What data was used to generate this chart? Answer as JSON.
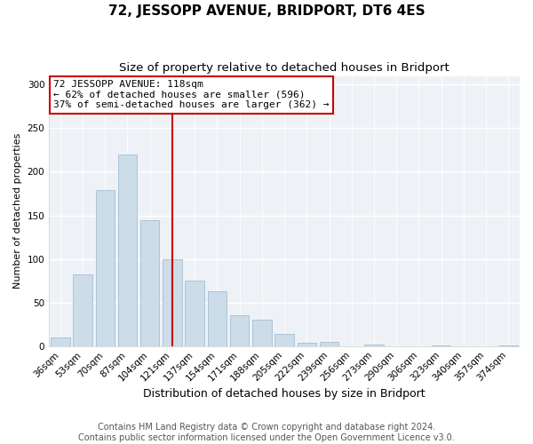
{
  "title": "72, JESSOPP AVENUE, BRIDPORT, DT6 4ES",
  "subtitle": "Size of property relative to detached houses in Bridport",
  "xlabel": "Distribution of detached houses by size in Bridport",
  "ylabel": "Number of detached properties",
  "bar_labels": [
    "36sqm",
    "53sqm",
    "70sqm",
    "87sqm",
    "104sqm",
    "121sqm",
    "137sqm",
    "154sqm",
    "171sqm",
    "188sqm",
    "205sqm",
    "222sqm",
    "239sqm",
    "256sqm",
    "273sqm",
    "290sqm",
    "306sqm",
    "323sqm",
    "340sqm",
    "357sqm",
    "374sqm"
  ],
  "bar_values": [
    10,
    82,
    179,
    220,
    144,
    100,
    75,
    63,
    35,
    30,
    14,
    4,
    5,
    0,
    2,
    0,
    0,
    1,
    0,
    0,
    1
  ],
  "bar_color": "#ccdce8",
  "bar_edge_color": "#aac4d8",
  "vline_x": 5,
  "vline_color": "#cc0000",
  "annotation_lines": [
    "72 JESSOPP AVENUE: 118sqm",
    "← 62% of detached houses are smaller (596)",
    "37% of semi-detached houses are larger (362) →"
  ],
  "ylim": [
    0,
    310
  ],
  "yticks": [
    0,
    50,
    100,
    150,
    200,
    250,
    300
  ],
  "footer_line1": "Contains HM Land Registry data © Crown copyright and database right 2024.",
  "footer_line2": "Contains public sector information licensed under the Open Government Licence v3.0.",
  "bg_color": "#ffffff",
  "plot_bg_color": "#eef2f7",
  "title_fontsize": 11,
  "subtitle_fontsize": 9.5,
  "xlabel_fontsize": 9,
  "ylabel_fontsize": 8,
  "tick_fontsize": 7.5,
  "footer_fontsize": 7
}
